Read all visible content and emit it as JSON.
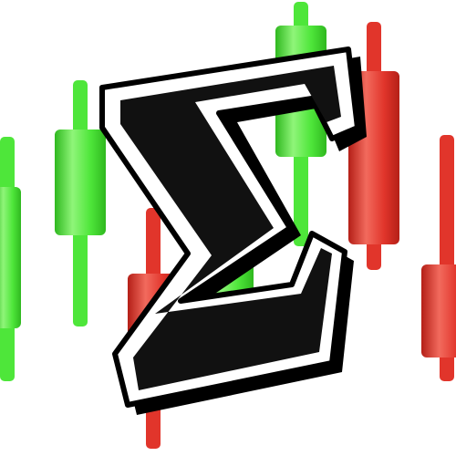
{
  "logo": {
    "icon": "sigma-candlestick-logo-icon",
    "glyph": "Σ",
    "colors": {
      "background": "#ffffff",
      "bullish": "#4ee63a",
      "bullish_light": "#8ff579",
      "bullish_dark": "#2fb81f",
      "bearish": "#e1352b",
      "bearish_light": "#f26a5d",
      "bearish_dark": "#b41f17",
      "sigma_fill": "#111111",
      "sigma_outline": "#ffffff",
      "sigma_border": "#000000"
    },
    "candles": [
      {
        "direction": "up"
      },
      {
        "direction": "up"
      },
      {
        "direction": "down"
      },
      {
        "direction": "up"
      },
      {
        "direction": "up"
      },
      {
        "direction": "down"
      },
      {
        "direction": "down"
      }
    ]
  }
}
